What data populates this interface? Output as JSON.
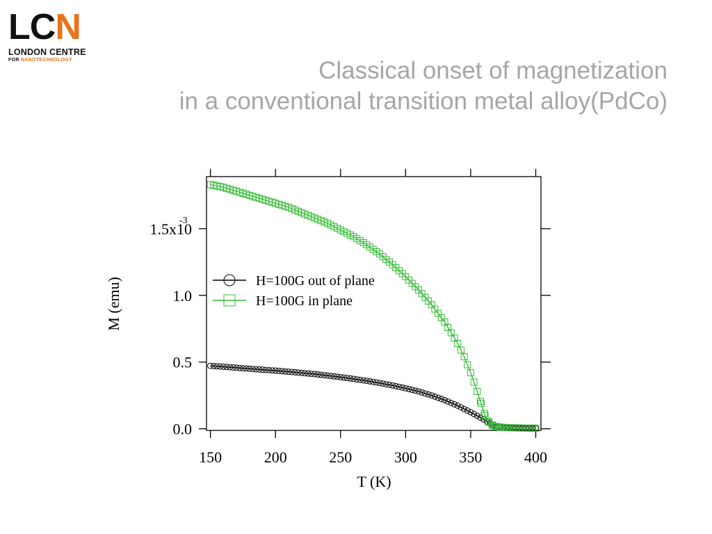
{
  "logo": {
    "letters_main": "LC",
    "letter_accent": "N",
    "line1": "LONDON CENTRE",
    "line2_prefix": "FOR ",
    "line2_accent": "NANOTECHNOLOGY",
    "accent_color": "#e8731a"
  },
  "slide": {
    "title_line1": "Classical onset of magnetization",
    "title_line2": "in a conventional transition metal alloy(PdCo)"
  },
  "chart_data": {
    "type": "line",
    "xlabel": "T  (K)",
    "ylabel": "M (emu)",
    "xlim": [
      147,
      404
    ],
    "ylim": [
      -1.2e-05,
      0.00189
    ],
    "x_ticks": [
      150,
      200,
      250,
      300,
      350,
      400
    ],
    "x_tick_labels": [
      "150",
      "200",
      "250",
      "300",
      "350",
      "400"
    ],
    "y_ticks": [
      0,
      0.0005,
      0.001,
      0.0015
    ],
    "y_tick_labels": [
      "0.0",
      "0.5",
      "1.0",
      "1.5x10"
    ],
    "y_exponent_label": "-3",
    "legend_position": "middle-left",
    "grid": false,
    "series": [
      {
        "name": "H=100G out of plane",
        "marker": "circle",
        "color": "#000000",
        "x": [
          150,
          160,
          170,
          180,
          190,
          200,
          210,
          220,
          230,
          240,
          250,
          260,
          270,
          280,
          290,
          300,
          310,
          320,
          330,
          340,
          350,
          355,
          360,
          365,
          370,
          375,
          380,
          385,
          390,
          395,
          400
        ],
        "y": [
          0.000472,
          0.000465,
          0.000458,
          0.00045,
          0.000443,
          0.000436,
          0.000428,
          0.000419,
          0.00041,
          0.000399,
          0.000387,
          0.000374,
          0.00036,
          0.000343,
          0.000325,
          0.000304,
          0.00028,
          0.00025,
          0.000215,
          0.000173,
          0.000124,
          9.8e-05,
          7e-05,
          4e-05,
          1.8e-05,
          8e-06,
          6e-06,
          5e-06,
          5e-06,
          4e-06,
          4e-06
        ]
      },
      {
        "name": "H=100G in plane",
        "marker": "square",
        "color": "#33bb33",
        "x": [
          150,
          160,
          170,
          180,
          190,
          200,
          210,
          220,
          230,
          240,
          250,
          260,
          270,
          280,
          290,
          300,
          310,
          320,
          330,
          340,
          345,
          350,
          355,
          358,
          361,
          364,
          367,
          370,
          373,
          376,
          380,
          385,
          390,
          395,
          400
        ],
        "y": [
          0.00183,
          0.00181,
          0.00178,
          0.00175,
          0.00172,
          0.00169,
          0.00166,
          0.00162,
          0.00158,
          0.00154,
          0.00149,
          0.00144,
          0.00138,
          0.00131,
          0.00123,
          0.00114,
          0.00104,
          0.00093,
          0.0008,
          0.00064,
          0.00054,
          0.00042,
          0.00028,
          0.00019,
          0.0001,
          4.8e-05,
          2.4e-05,
          1.6e-05,
          1.2e-05,
          1e-05,
          8e-06,
          7e-06,
          6e-06,
          5e-06,
          5e-06
        ]
      }
    ]
  }
}
